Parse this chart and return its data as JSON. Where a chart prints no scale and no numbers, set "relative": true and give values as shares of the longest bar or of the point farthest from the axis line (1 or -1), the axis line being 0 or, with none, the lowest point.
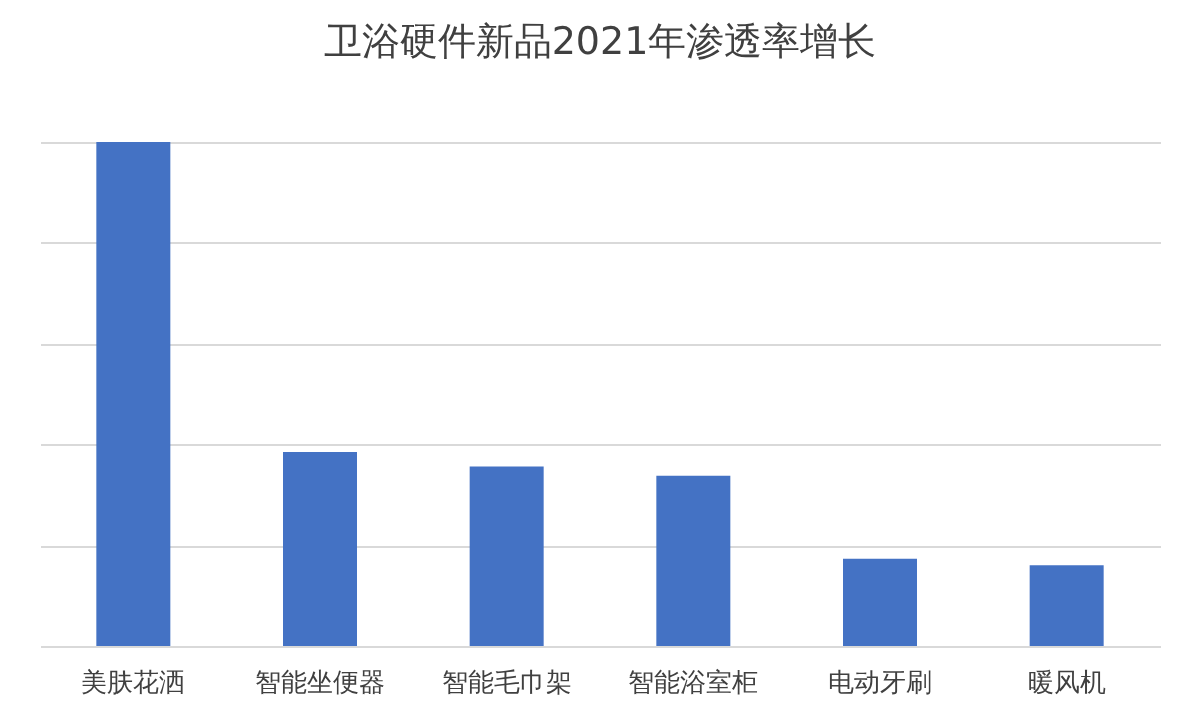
{
  "chart_data": {
    "type": "bar",
    "title": "卫浴硬件新品2021年渗透率增长",
    "categories": [
      "美肤花洒",
      "智能坐便器",
      "智能毛巾架",
      "智能浴室柜",
      "电动牙刷",
      "暖风机"
    ],
    "values": [
      1,
      0.385,
      0.356,
      0.338,
      0.173,
      0.16
    ],
    "color": "#4472c4",
    "relative": true,
    "grid": true
  }
}
